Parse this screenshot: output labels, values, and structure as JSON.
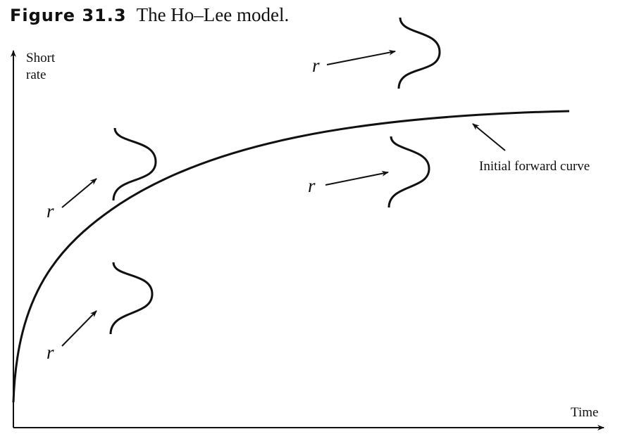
{
  "figure": {
    "label": "Figure 31.3",
    "title": "The Ho–Lee model."
  },
  "axes": {
    "y_label_line1": "Short",
    "y_label_line2": "rate",
    "x_label": "Time"
  },
  "annotations": {
    "curve_label": "Initial forward curve",
    "rate_symbol": "r"
  }
}
